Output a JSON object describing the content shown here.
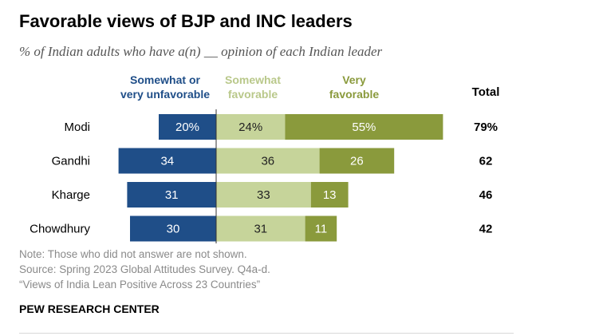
{
  "title": "Favorable views of BJP and INC leaders",
  "subtitle": "% of Indian adults who have a(n) __ opinion of each Indian leader",
  "chart_data": {
    "type": "bar",
    "orientation": "horizontal-diverging",
    "categories": [
      "Modi",
      "Gandhi",
      "Kharge",
      "Chowdhury"
    ],
    "series": [
      {
        "name": "Somewhat or very unfavorable",
        "values": [
          20,
          34,
          31,
          30
        ],
        "labels": [
          "20%",
          "34",
          "31",
          "30"
        ],
        "color": "#1f4e88"
      },
      {
        "name": "Somewhat favorable",
        "values": [
          24,
          36,
          33,
          31
        ],
        "labels": [
          "24%",
          "36",
          "33",
          "31"
        ],
        "color": "#c6d49a"
      },
      {
        "name": "Very favorable",
        "values": [
          55,
          26,
          13,
          11
        ],
        "labels": [
          "55%",
          "26",
          "13",
          "11"
        ],
        "color": "#8a9a3c"
      }
    ],
    "legend": [
      {
        "lines": [
          "Somewhat or",
          "very unfavorable"
        ],
        "color": "#1f4e88"
      },
      {
        "lines": [
          "Somewhat",
          "favorable"
        ],
        "color": "#c6d49a"
      },
      {
        "lines": [
          "Very",
          "favorable"
        ],
        "color": "#8a9a3c"
      }
    ],
    "total_header": "Total",
    "totals": [
      "79%",
      "62",
      "46",
      "42"
    ]
  },
  "notes": [
    "Note: Those who did not answer are not shown.",
    "Source: Spring 2023 Global Attitudes Survey. Q4a-d.",
    "“Views of India Lean Positive Across 23 Countries”"
  ],
  "source_brand": "PEW RESEARCH CENTER"
}
